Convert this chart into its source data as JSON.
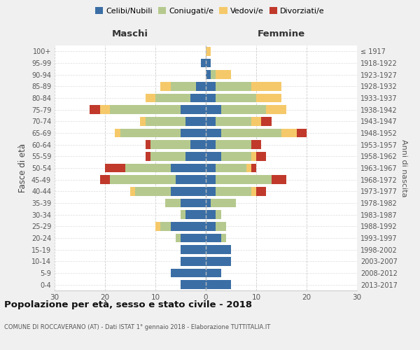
{
  "age_groups": [
    "0-4",
    "5-9",
    "10-14",
    "15-19",
    "20-24",
    "25-29",
    "30-34",
    "35-39",
    "40-44",
    "45-49",
    "50-54",
    "55-59",
    "60-64",
    "65-69",
    "70-74",
    "75-79",
    "80-84",
    "85-89",
    "90-94",
    "95-99",
    "100+"
  ],
  "birth_years": [
    "2013-2017",
    "2008-2012",
    "2003-2007",
    "1998-2002",
    "1993-1997",
    "1988-1992",
    "1983-1987",
    "1978-1982",
    "1973-1977",
    "1968-1972",
    "1963-1967",
    "1958-1962",
    "1953-1957",
    "1948-1952",
    "1943-1947",
    "1938-1942",
    "1933-1937",
    "1928-1932",
    "1923-1927",
    "1918-1922",
    "≤ 1917"
  ],
  "colors": {
    "celibe": "#3a6ea5",
    "coniugato": "#b5c98e",
    "vedovo": "#f5c96a",
    "divorziato": "#c0392b"
  },
  "maschi": {
    "celibe": [
      5,
      7,
      5,
      5,
      5,
      7,
      4,
      5,
      7,
      6,
      7,
      4,
      3,
      5,
      4,
      5,
      3,
      2,
      0,
      1,
      0
    ],
    "coniugato": [
      0,
      0,
      0,
      0,
      1,
      2,
      1,
      3,
      7,
      13,
      9,
      7,
      8,
      12,
      8,
      14,
      7,
      5,
      0,
      0,
      0
    ],
    "vedovo": [
      0,
      0,
      0,
      0,
      0,
      1,
      0,
      0,
      1,
      0,
      0,
      0,
      0,
      1,
      1,
      2,
      2,
      2,
      0,
      0,
      0
    ],
    "divorziato": [
      0,
      0,
      0,
      0,
      0,
      0,
      0,
      0,
      0,
      2,
      4,
      1,
      1,
      0,
      0,
      2,
      0,
      0,
      0,
      0,
      0
    ]
  },
  "femmine": {
    "nubile": [
      5,
      3,
      5,
      5,
      3,
      2,
      2,
      1,
      2,
      2,
      2,
      3,
      2,
      3,
      2,
      3,
      2,
      2,
      1,
      1,
      0
    ],
    "coniugata": [
      0,
      0,
      0,
      0,
      1,
      2,
      1,
      5,
      7,
      11,
      6,
      6,
      7,
      12,
      7,
      9,
      8,
      7,
      1,
      0,
      0
    ],
    "vedova": [
      0,
      0,
      0,
      0,
      0,
      0,
      0,
      0,
      1,
      0,
      1,
      1,
      0,
      3,
      2,
      4,
      5,
      6,
      3,
      0,
      1
    ],
    "divorziata": [
      0,
      0,
      0,
      0,
      0,
      0,
      0,
      0,
      2,
      3,
      1,
      2,
      2,
      2,
      2,
      0,
      0,
      0,
      0,
      0,
      0
    ]
  },
  "xlim": 30,
  "title": "Popolazione per età, sesso e stato civile - 2018",
  "subtitle": "COMUNE DI ROCCAVERANO (AT) - Dati ISTAT 1° gennaio 2018 - Elaborazione TUTTITALIA.IT",
  "ylabel_left": "Fasce di età",
  "ylabel_right": "Anni di nascita",
  "header_left": "Maschi",
  "header_right": "Femmine",
  "legend_labels": [
    "Celibi/Nubili",
    "Coniugati/e",
    "Vedovi/e",
    "Divorziati/e"
  ],
  "bg_color": "#f0f0f0",
  "plot_bg_color": "#ffffff"
}
